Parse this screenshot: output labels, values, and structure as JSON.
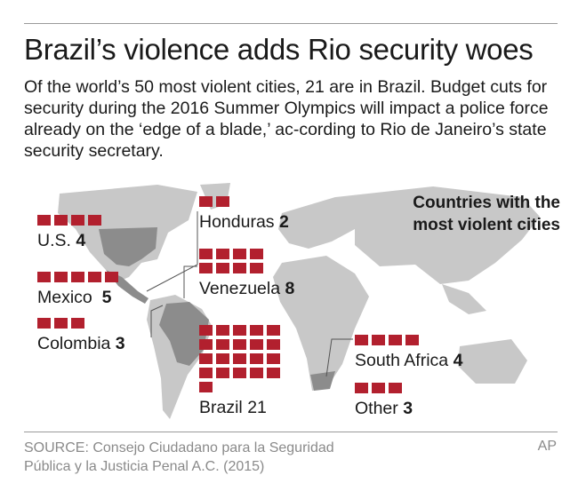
{
  "headline": "Brazil’s violence adds Rio security woes",
  "dek": "Of the world’s 50 most violent cities, 21 are in Brazil. Budget cuts for security during the 2016 Summer Olympics will impact a police force already on the ‘edge of a blade,’ ac-cording to Rio de Janeiro’s state security secretary.",
  "chart_title_line1": "Countries with the",
  "chart_title_line2": "most violent cities",
  "source_line1": "SOURCE: Consejo Ciudadano para la Seguridad",
  "source_line2": "Pública y la Justicia Penal A.C. (2015)",
  "credit": "AP",
  "colors": {
    "accent": "#b2202e",
    "land": "#c8c8c8",
    "highlight": "#8c8c8c",
    "rule": "#9a9a9a"
  },
  "chart_data": {
    "type": "bar",
    "title": "Countries with the most violent cities",
    "categories": [
      "U.S.",
      "Mexico",
      "Colombia",
      "Honduras",
      "Venezuela",
      "Brazil",
      "South Africa",
      "Other"
    ],
    "values": [
      4,
      5,
      3,
      2,
      8,
      21,
      4,
      3
    ]
  }
}
